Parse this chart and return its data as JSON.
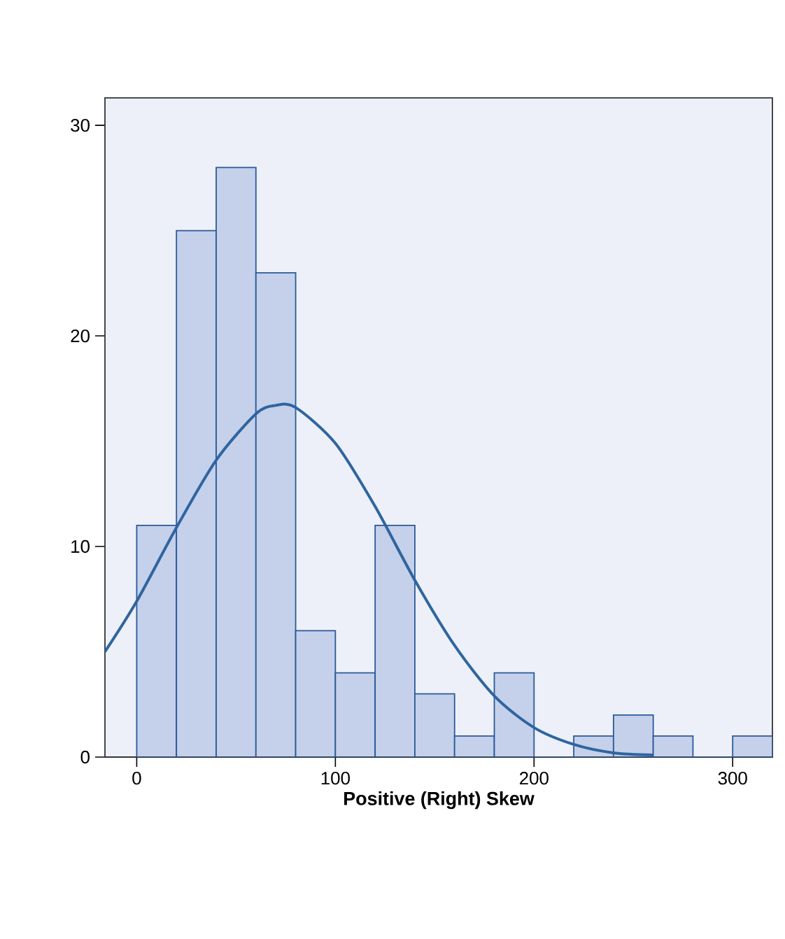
{
  "chart_data": {
    "type": "histogram",
    "xlabel": "Positive (Right) Skew",
    "bins": [
      0,
      20,
      40,
      60,
      80,
      100,
      120,
      140,
      160,
      180,
      200,
      220,
      240,
      260,
      280,
      300,
      320
    ],
    "values": [
      11,
      25,
      28,
      23,
      6,
      4,
      11,
      3,
      1,
      4,
      0,
      1,
      2,
      1,
      0,
      1
    ],
    "color": "#c5d0ea",
    "series": [
      {
        "type": "line",
        "color": "#2f65a0",
        "x": [
          -16,
          0,
          20,
          40,
          60,
          70,
          80,
          100,
          120,
          140,
          160,
          180,
          200,
          220,
          240,
          260
        ],
        "values": [
          5.0,
          7.4,
          10.9,
          14.1,
          16.3,
          16.7,
          16.6,
          14.9,
          11.9,
          8.4,
          5.3,
          2.9,
          1.4,
          0.6,
          0.2,
          0.1
        ]
      }
    ],
    "xlim": [
      -16,
      320
    ],
    "ylim": [
      0,
      31.3
    ],
    "xticks": [
      0,
      100,
      200,
      300
    ],
    "yticks": [
      0,
      10,
      20,
      30
    ],
    "grid": false
  }
}
